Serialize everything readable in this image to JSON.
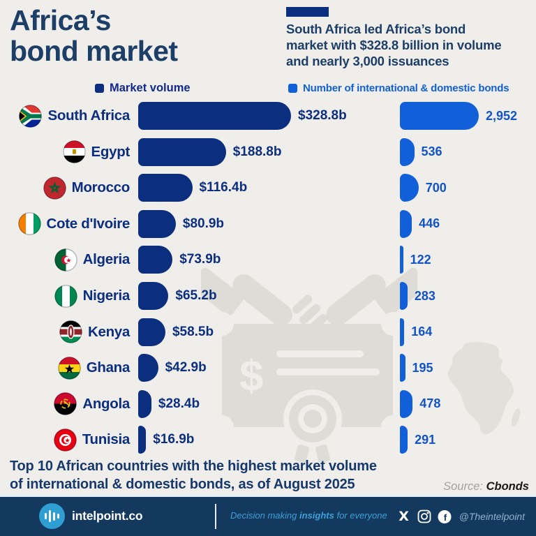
{
  "header": {
    "title_lines": [
      "Africa’s",
      "bond market"
    ],
    "subtitle_lines": [
      "South Africa led Africa’s bond",
      "market with $328.8 billion in volume",
      "and nearly 3,000 issuances"
    ]
  },
  "legend": {
    "volume_label": "Market volume",
    "bonds_label": "Number of international & domestic bonds"
  },
  "chart_data": {
    "type": "bar",
    "orientation": "horizontal",
    "title": "Africa’s bond market",
    "categories": [
      "South Africa",
      "Egypt",
      "Morocco",
      "Cote d'Ivoire",
      "Algeria",
      "Nigeria",
      "Kenya",
      "Ghana",
      "Angola",
      "Tunisia"
    ],
    "series": [
      {
        "name": "Market volume ($ billions)",
        "values": [
          328.8,
          188.8,
          116.4,
          80.9,
          73.9,
          65.2,
          58.5,
          42.9,
          28.4,
          16.9
        ],
        "labels": [
          "$328.8b",
          "$188.8b",
          "$116.4b",
          "$80.9b",
          "$73.9b",
          "$65.2b",
          "$58.5b",
          "$42.9b",
          "$28.4b",
          "$16.9b"
        ],
        "color": "#0c2e7e"
      },
      {
        "name": "Number of international & domestic bonds",
        "values": [
          2952,
          536,
          700,
          446,
          122,
          283,
          164,
          195,
          478,
          291
        ],
        "labels": [
          "2,952",
          "536",
          "700",
          "446",
          "122",
          "283",
          "164",
          "195",
          "478",
          "291"
        ],
        "color": "#1160d9"
      }
    ],
    "legend_position": "top",
    "grid": false
  },
  "caption": {
    "line1": "Top 10 African countries with the highest market volume",
    "line2": "of international & domestic bonds, as of August 2025",
    "source_label": "Source:",
    "source_value": "Cbonds"
  },
  "footer": {
    "brand": "intelpoint.co",
    "tagline_pre": "Decision making ",
    "tagline_bold": "insights",
    "tagline_post": " for everyone",
    "social_handle": "@Theintelpoint"
  },
  "colors": {
    "background": "#f0eeea",
    "navy_bar": "#0c2e7e",
    "bright_blue": "#1160d9",
    "heading_text": "#1d3e66",
    "footer_bg": "#133a5e",
    "footer_accent": "#2f9ed2",
    "watermark_gray": "#dedcd7"
  }
}
